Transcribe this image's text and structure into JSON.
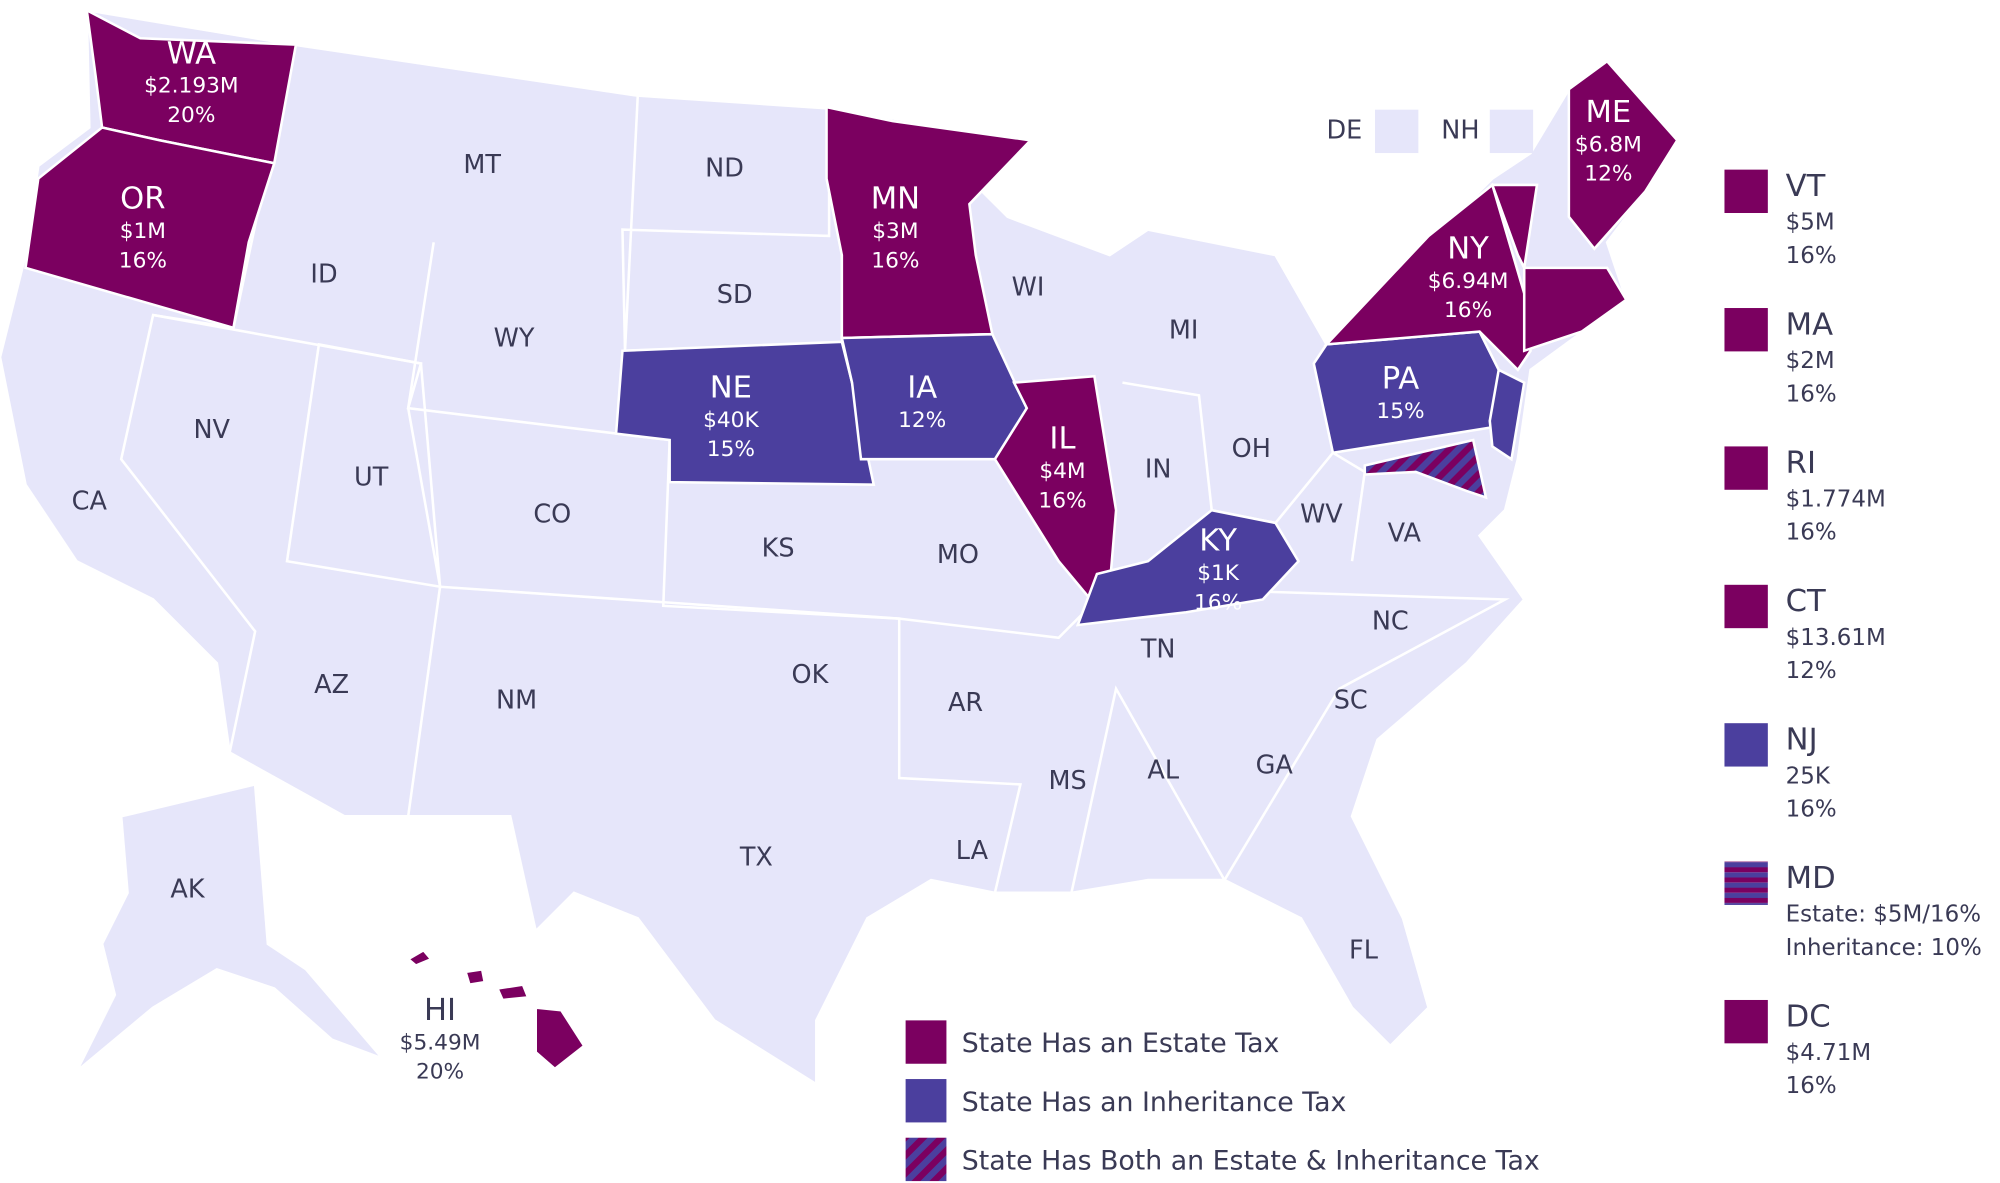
{
  "states": [
    {
      "abbr": "MT"
    },
    {
      "abbr": "ND"
    },
    {
      "abbr": "ID"
    },
    {
      "abbr": "SD"
    },
    {
      "abbr": "WY"
    },
    {
      "abbr": "WI"
    },
    {
      "abbr": "MI"
    },
    {
      "abbr": "NV"
    },
    {
      "abbr": "UT"
    },
    {
      "abbr": "CO"
    },
    {
      "abbr": "CA"
    },
    {
      "abbr": "KS"
    },
    {
      "abbr": "MO"
    },
    {
      "abbr": "IN"
    },
    {
      "abbr": "OH"
    },
    {
      "abbr": "WV"
    },
    {
      "abbr": "VA"
    },
    {
      "abbr": "NC"
    },
    {
      "abbr": "TN"
    },
    {
      "abbr": "AZ"
    },
    {
      "abbr": "NM"
    },
    {
      "abbr": "OK"
    },
    {
      "abbr": "AR"
    },
    {
      "abbr": "SC"
    },
    {
      "abbr": "MS"
    },
    {
      "abbr": "AL"
    },
    {
      "abbr": "GA"
    },
    {
      "abbr": "TX"
    },
    {
      "abbr": "LA"
    },
    {
      "abbr": "FL"
    },
    {
      "abbr": "AK"
    },
    {
      "abbr": "WA",
      "lines": [
        "$2.193M",
        "20%"
      ],
      "color": "#7b0060"
    },
    {
      "abbr": "OR",
      "lines": [
        "$1M",
        "16%"
      ],
      "color": "#7b0060"
    },
    {
      "abbr": "MN",
      "lines": [
        "$3M",
        "16%"
      ],
      "color": "#7b0060"
    },
    {
      "abbr": "NE",
      "lines": [
        "$40K",
        "15%"
      ],
      "color": "#4b3f9e"
    },
    {
      "abbr": "IA",
      "lines": [
        "12%"
      ],
      "color": "#4b3f9e"
    },
    {
      "abbr": "IL",
      "lines": [
        "$4M",
        "16%"
      ],
      "color": "#7b0060"
    },
    {
      "abbr": "KY",
      "lines": [
        "$1K",
        "16%"
      ],
      "color": "#4b3f9e"
    },
    {
      "abbr": "PA",
      "lines": [
        "15%"
      ],
      "color": "#4b3f9e"
    },
    {
      "abbr": "NY",
      "lines": [
        "$6.94M",
        "16%"
      ],
      "color": "#7b0060"
    },
    {
      "abbr": "ME",
      "lines": [
        "$6.8M",
        "12%"
      ],
      "color": "#7b0060"
    },
    {
      "abbr": "HI",
      "lines": [
        "$5.49M",
        "20%"
      ],
      "color": "#7b0060"
    }
  ],
  "unshaded": [
    "DE",
    "NH"
  ],
  "side_legend": [
    {
      "abbr": "VT",
      "lines": [
        "$5M",
        "16%"
      ],
      "color": "#7b0060"
    },
    {
      "abbr": "MA",
      "lines": [
        "$2M",
        "16%"
      ],
      "color": "#7b0060"
    },
    {
      "abbr": "RI",
      "lines": [
        "$1.774M",
        "16%"
      ],
      "color": "#7b0060"
    },
    {
      "abbr": "CT",
      "lines": [
        "$13.61M",
        "12%"
      ],
      "color": "#7b0060"
    },
    {
      "abbr": "NJ",
      "lines": [
        "25K",
        "16%"
      ],
      "color": "#4b3f9e"
    },
    {
      "abbr": "MD",
      "lines": [
        "Estate: $5M/16%",
        "Inheritance: 10%"
      ],
      "color": [
        "#7b0060",
        "#4b3f9e"
      ]
    },
    {
      "abbr": "DC",
      "lines": [
        "$4.71M",
        "16%"
      ],
      "color": "#7b0060"
    }
  ],
  "legend": [
    {
      "label": "State Has an Estate Tax",
      "color": "#7b0060"
    },
    {
      "label": "State Has an Inheritance Tax",
      "color": "#4b3f9e"
    },
    {
      "label": "State Has Both an Estate & Inheritance Tax",
      "color": [
        "#7b0060",
        "#4b3f9e"
      ]
    }
  ]
}
